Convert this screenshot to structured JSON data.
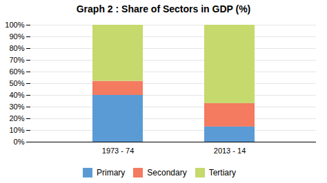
{
  "chart_data": {
    "type": "bar",
    "stacked": true,
    "title": "Graph 2 : Share of Sectors in GDP (%)",
    "categories": [
      "1973 - 74",
      "2013 - 14"
    ],
    "series": [
      {
        "name": "Primary",
        "color": "#5b9bd5",
        "values": [
          40,
          13
        ]
      },
      {
        "name": "Secondary",
        "color": "#f47a60",
        "values": [
          12,
          20
        ]
      },
      {
        "name": "Tertiary",
        "color": "#c5d96d",
        "values": [
          48,
          67
        ]
      }
    ],
    "ylim": [
      0,
      100
    ],
    "yticks": [
      {
        "value": 0,
        "label": "0%"
      },
      {
        "value": 10,
        "label": "10%"
      },
      {
        "value": 20,
        "label": "20%"
      },
      {
        "value": 30,
        "label": "30%"
      },
      {
        "value": 40,
        "label": "40%"
      },
      {
        "value": 50,
        "label": "50%"
      },
      {
        "value": 60,
        "label": "60%"
      },
      {
        "value": 70,
        "label": "70%"
      },
      {
        "value": 80,
        "label": "80%"
      },
      {
        "value": 90,
        "label": "90%"
      },
      {
        "value": 100,
        "label": "100%"
      }
    ],
    "grid": true,
    "legend": "bottom"
  }
}
